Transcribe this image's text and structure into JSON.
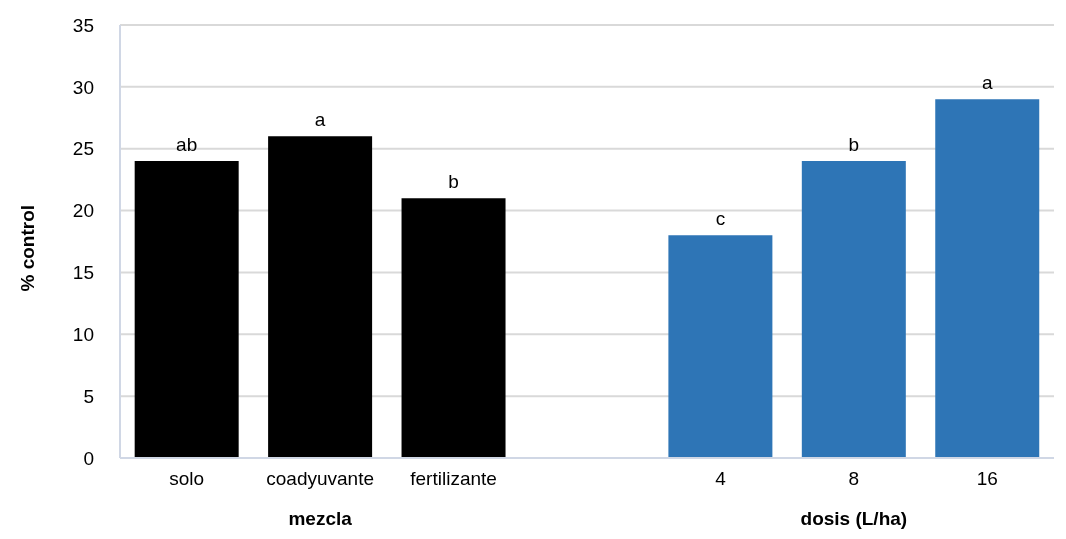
{
  "chart_data": {
    "type": "bar",
    "ylabel": "% control",
    "categories": [
      "solo",
      "coadyuvante",
      "fertilizante",
      null,
      "4",
      "8",
      "16"
    ],
    "values": [
      24,
      26,
      21,
      null,
      18,
      24,
      29
    ],
    "colors": [
      "#000000",
      "#000000",
      "#000000",
      null,
      "#2e75b6",
      "#2e75b6",
      "#2e75b6"
    ],
    "value_labels": [
      "ab",
      "a",
      "b",
      null,
      "c",
      "b",
      "a"
    ],
    "annotations": [
      "mezcla",
      "dosis (L/ha)"
    ],
    "ylim": [
      0,
      35
    ],
    "yticks": [
      0,
      5,
      10,
      15,
      20,
      25,
      30,
      35
    ],
    "grid": "y"
  }
}
